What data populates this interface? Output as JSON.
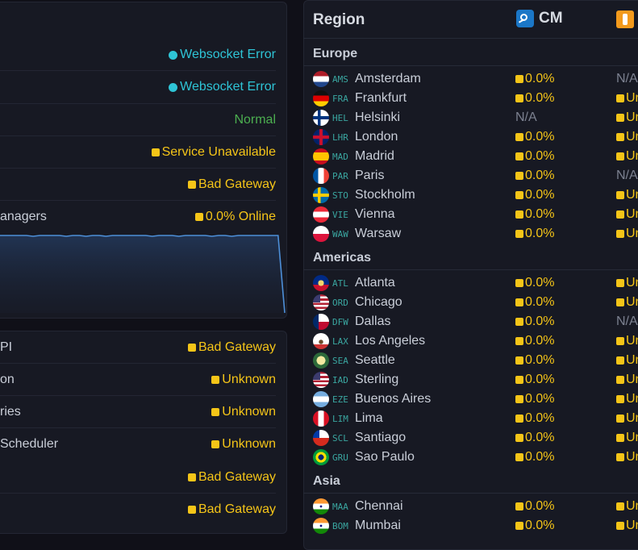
{
  "left_top": [
    {
      "name": "",
      "status": "Websocket Error",
      "kind": "cyan"
    },
    {
      "name": "",
      "status": "Websocket Error",
      "kind": "cyan"
    },
    {
      "name": "",
      "status": "Normal",
      "kind": "green"
    },
    {
      "name": "",
      "status": "Service Unavailable",
      "kind": "amber"
    },
    {
      "name": "",
      "status": "Bad Gateway",
      "kind": "amber"
    },
    {
      "name": "anagers",
      "status": "0.0% Online",
      "kind": "amber"
    }
  ],
  "left_bottom": [
    {
      "name": "PI",
      "status": "Bad Gateway",
      "kind": "amber"
    },
    {
      "name": "on",
      "status": "Unknown",
      "kind": "amber"
    },
    {
      "name": "ries",
      "status": "Unknown",
      "kind": "amber"
    },
    {
      "name": " Scheduler",
      "status": "Unknown",
      "kind": "amber"
    },
    {
      "name": "",
      "status": "Bad Gateway",
      "kind": "amber"
    },
    {
      "name": "",
      "status": "Bad Gateway",
      "kind": "amber"
    }
  ],
  "graph": {
    "series": [
      96,
      96,
      96,
      96,
      96,
      95,
      96,
      96,
      96,
      96,
      95,
      96,
      96,
      95,
      96,
      96,
      95,
      96,
      96,
      96,
      96,
      96,
      96,
      95,
      96,
      96,
      96,
      95,
      96,
      96,
      96,
      96,
      95,
      96,
      96,
      95,
      96,
      96,
      96,
      96,
      96,
      96,
      96,
      0
    ],
    "color": "#4d8fd8"
  },
  "table": {
    "region_header": "Region",
    "cm_header": "CM",
    "groups": [
      {
        "title": "Europe",
        "rows": [
          {
            "flag": "nl",
            "code": "AMS",
            "city": "Amsterdam",
            "cm": "0.0%",
            "gc": "N/A"
          },
          {
            "flag": "de",
            "code": "FRA",
            "city": "Frankfurt",
            "cm": "0.0%",
            "gc": "Un"
          },
          {
            "flag": "fi",
            "code": "HEL",
            "city": "Helsinki",
            "cm": "N/A",
            "gc": "Un"
          },
          {
            "flag": "gb",
            "code": "LHR",
            "city": "London",
            "cm": "0.0%",
            "gc": "Un"
          },
          {
            "flag": "es",
            "code": "MAD",
            "city": "Madrid",
            "cm": "0.0%",
            "gc": "Un"
          },
          {
            "flag": "fr",
            "code": "PAR",
            "city": "Paris",
            "cm": "0.0%",
            "gc": "N/A"
          },
          {
            "flag": "se",
            "code": "STO",
            "city": "Stockholm",
            "cm": "0.0%",
            "gc": "Un"
          },
          {
            "flag": "at",
            "code": "VIE",
            "city": "Vienna",
            "cm": "0.0%",
            "gc": "Un"
          },
          {
            "flag": "pl",
            "code": "WAW",
            "city": "Warsaw",
            "cm": "0.0%",
            "gc": "Un"
          }
        ]
      },
      {
        "title": "Americas",
        "rows": [
          {
            "flag": "ga",
            "code": "ATL",
            "city": "Atlanta",
            "cm": "0.0%",
            "gc": "Un"
          },
          {
            "flag": "us",
            "code": "ORD",
            "city": "Chicago",
            "cm": "0.0%",
            "gc": "Un"
          },
          {
            "flag": "tx",
            "code": "DFW",
            "city": "Dallas",
            "cm": "0.0%",
            "gc": "N/A"
          },
          {
            "flag": "ca",
            "code": "LAX",
            "city": "Los Angeles",
            "cm": "0.0%",
            "gc": "Un"
          },
          {
            "flag": "wa",
            "code": "SEA",
            "city": "Seattle",
            "cm": "0.0%",
            "gc": "Un"
          },
          {
            "flag": "us",
            "code": "IAD",
            "city": "Sterling",
            "cm": "0.0%",
            "gc": "Un"
          },
          {
            "flag": "ar",
            "code": "EZE",
            "city": "Buenos Aires",
            "cm": "0.0%",
            "gc": "Un"
          },
          {
            "flag": "pe",
            "code": "LIM",
            "city": "Lima",
            "cm": "0.0%",
            "gc": "Un"
          },
          {
            "flag": "cl",
            "code": "SCL",
            "city": "Santiago",
            "cm": "0.0%",
            "gc": "Un"
          },
          {
            "flag": "br",
            "code": "GRU",
            "city": "Sao Paulo",
            "cm": "0.0%",
            "gc": "Un"
          }
        ]
      },
      {
        "title": "Asia",
        "rows": [
          {
            "flag": "in",
            "code": "MAA",
            "city": "Chennai",
            "cm": "0.0%",
            "gc": "Un"
          },
          {
            "flag": "in",
            "code": "BOM",
            "city": "Mumbai",
            "cm": "0.0%",
            "gc": "Un"
          }
        ]
      }
    ]
  },
  "colors": {
    "accent_cyan": "#2ec4d6",
    "accent_amber": "#f5c518",
    "accent_green": "#4caf50",
    "bg": "#101018",
    "panel": "#171923"
  }
}
